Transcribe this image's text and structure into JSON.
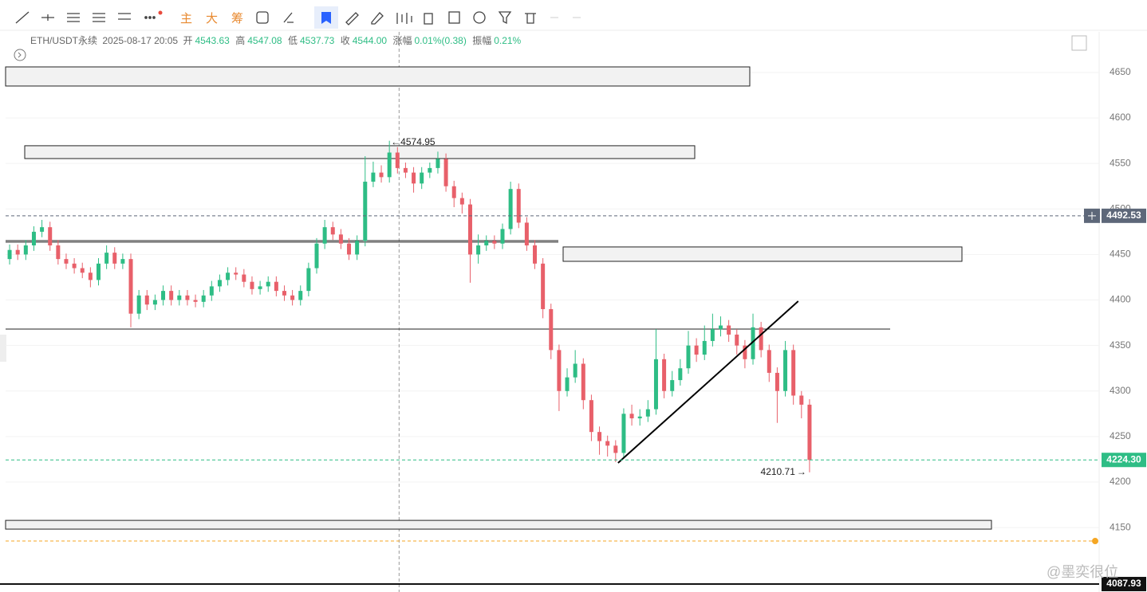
{
  "toolbar": {
    "buttons": [
      "主",
      "大",
      "筹"
    ]
  },
  "header": {
    "symbol": "ETH/USDT永续",
    "time": "2025-08-17 20:05",
    "open_label": "开",
    "open": "4543.63",
    "high_label": "高",
    "high": "4547.08",
    "low_label": "低",
    "low": "4537.73",
    "close_label": "收",
    "close": "4544.00",
    "change_label": "涨幅",
    "change": "0.01%(0.38)",
    "amplitude_label": "振幅",
    "amplitude": "0.21%"
  },
  "watermark": "@墨奕很位",
  "chart_data": {
    "type": "candlestick",
    "up_color": "#2ebd85",
    "down_color": "#e8606a",
    "ylim": [
      4079.2,
      4694.6
    ],
    "yticks": [
      4150,
      4200,
      4250,
      4300,
      4350,
      4400,
      4450,
      4500,
      4550,
      4600,
      4650
    ],
    "open": [
      4445,
      4455,
      4450,
      4460,
      4475,
      4480,
      4460,
      4445,
      4440,
      4435,
      4430,
      4422,
      4440,
      4452,
      4440,
      4445,
      4385,
      4405,
      4395,
      4400,
      4410,
      4400,
      4405,
      4400,
      4398,
      4405,
      4415,
      4422,
      4430,
      4428,
      4420,
      4412,
      4415,
      4420,
      4410,
      4405,
      4400,
      4410,
      4435,
      4462,
      4480,
      4472,
      4462,
      4450,
      4465,
      4530,
      4540,
      4535,
      4562,
      4545,
      4540,
      4528,
      4540,
      4545,
      4555,
      4525,
      4512,
      4505,
      4450,
      4460,
      4465,
      4462,
      4478,
      4522,
      4485,
      4460,
      4440,
      4390,
      4345,
      4300,
      4315,
      4330,
      4290,
      4255,
      4245,
      4240,
      4232,
      4275,
      4270,
      4272,
      4280,
      4335,
      4300,
      4312,
      4325,
      4350,
      4340,
      4355,
      4368,
      4372,
      4362,
      4350,
      4335,
      4370,
      4345,
      4320,
      4300,
      4345,
      4295,
      4285
    ],
    "high": [
      4461,
      4461,
      4466,
      4481,
      4488,
      4486,
      4466,
      4451,
      4446,
      4441,
      4436,
      4446,
      4460,
      4458,
      4451,
      4451,
      4411,
      4411,
      4406,
      4416,
      4416,
      4411,
      4411,
      4406,
      4411,
      4421,
      4428,
      4436,
      4436,
      4434,
      4426,
      4421,
      4426,
      4426,
      4416,
      4411,
      4416,
      4441,
      4468,
      4488,
      4486,
      4478,
      4468,
      4471,
      4558,
      4552,
      4548,
      4574.95,
      4568,
      4551,
      4546,
      4546,
      4551,
      4563,
      4561,
      4531,
      4518,
      4511,
      4472,
      4471,
      4471,
      4484,
      4530,
      4528,
      4491,
      4466,
      4446,
      4396,
      4351,
      4325,
      4345,
      4336,
      4296,
      4261,
      4251,
      4246,
      4281,
      4285,
      4280,
      4290,
      4368,
      4341,
      4322,
      4335,
      4366,
      4358,
      4372,
      4385,
      4382,
      4378,
      4368,
      4356,
      4385,
      4376,
      4351,
      4326,
      4355,
      4351,
      4300,
      4291
    ],
    "low": [
      4439,
      4444,
      4444,
      4454,
      4469,
      4454,
      4439,
      4434,
      4429,
      4424,
      4414,
      4416,
      4434,
      4434,
      4434,
      4370,
      4379,
      4389,
      4389,
      4394,
      4394,
      4394,
      4394,
      4392,
      4392,
      4399,
      4409,
      4416,
      4422,
      4414,
      4406,
      4406,
      4409,
      4404,
      4399,
      4394,
      4394,
      4404,
      4429,
      4456,
      4466,
      4456,
      4444,
      4444,
      4459,
      4524,
      4529,
      4529,
      4539,
      4534,
      4518,
      4522,
      4534,
      4539,
      4519,
      4502,
      4495,
      4419,
      4440,
      4454,
      4456,
      4456,
      4472,
      4479,
      4454,
      4434,
      4380,
      4335,
      4278,
      4294,
      4309,
      4280,
      4245,
      4230,
      4228,
      4222,
      4226,
      4262,
      4262,
      4266,
      4274,
      4292,
      4294,
      4306,
      4319,
      4332,
      4334,
      4349,
      4360,
      4354,
      4340,
      4325,
      4329,
      4337,
      4310,
      4265,
      4294,
      4285,
      4270,
      4210.71
    ],
    "close": [
      4455,
      4450,
      4460,
      4475,
      4480,
      4460,
      4445,
      4440,
      4435,
      4430,
      4422,
      4440,
      4452,
      4440,
      4445,
      4385,
      4405,
      4395,
      4400,
      4410,
      4400,
      4405,
      4400,
      4398,
      4405,
      4415,
      4422,
      4430,
      4428,
      4420,
      4412,
      4415,
      4420,
      4410,
      4405,
      4400,
      4410,
      4435,
      4462,
      4480,
      4472,
      4462,
      4450,
      4465,
      4530,
      4540,
      4535,
      4562,
      4545,
      4540,
      4528,
      4540,
      4545,
      4555,
      4525,
      4512,
      4505,
      4450,
      4460,
      4465,
      4462,
      4478,
      4522,
      4485,
      4460,
      4440,
      4390,
      4345,
      4300,
      4315,
      4330,
      4290,
      4255,
      4245,
      4240,
      4232,
      4275,
      4270,
      4272,
      4280,
      4335,
      4300,
      4312,
      4325,
      4350,
      4340,
      4355,
      4368,
      4372,
      4362,
      4350,
      4335,
      4370,
      4345,
      4320,
      4300,
      4345,
      4295,
      4285,
      4224.3
    ],
    "high_marker": 47,
    "low_marker": 99,
    "zones": [
      {
        "top": 4656.1,
        "bottom": 4635.1
      },
      {
        "top": 4569.5,
        "bottom": 4555.4
      },
      {
        "top": 4458.3,
        "bottom": 4442.5
      },
      {
        "top": 4157.9,
        "bottom": 4148.3
      }
    ],
    "levels": [
      4465.3,
      4463.6,
      4368.1
    ],
    "price_tags": [
      {
        "value": 4492.53,
        "color": "#5d6779"
      },
      {
        "value": 4224.3,
        "label": "4224.30",
        "color": "#2ebd85"
      },
      {
        "value": 4087.93,
        "color": "#111111"
      }
    ],
    "alert_level": 4135.2,
    "alert_color": "#f5a623",
    "trendline": {
      "x": [
        75.3,
        97.6
      ],
      "y": [
        4221,
        4398.7
      ]
    },
    "crosshair_x": 48.2
  }
}
